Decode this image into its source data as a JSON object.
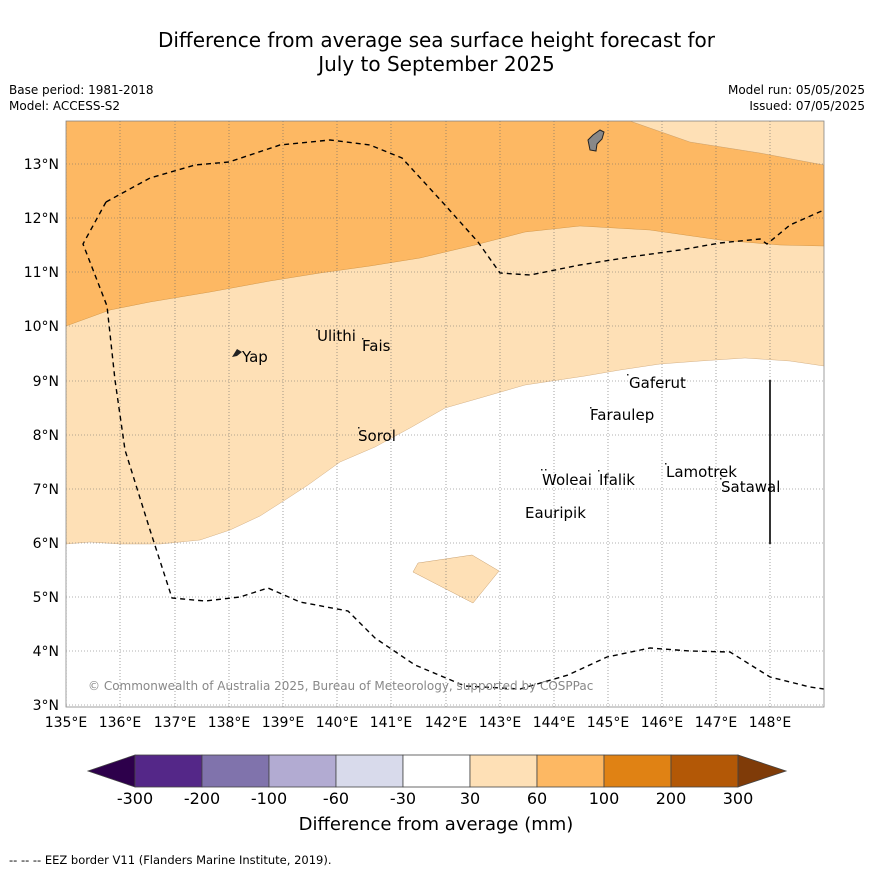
{
  "title_line1": "Difference from average sea surface height forecast for",
  "title_line2": "July to September 2025",
  "base_period": "Base period: 1981-2018",
  "model": "Model: ACCESS-S2",
  "model_run": "Model run: 05/05/2025",
  "issued": "Issued: 07/05/2025",
  "copyright": "© Commonwealth of Australia 2025, Bureau of Meteorology, supported by COSPPac",
  "footnote": "--  --  -- EEZ border V11 (Flanders Marine Institute, 2019).",
  "map": {
    "lon_range": [
      135,
      149
    ],
    "lat_range": [
      3,
      13.8
    ],
    "x_ticks": [
      "135°E",
      "136°E",
      "137°E",
      "138°E",
      "139°E",
      "140°E",
      "141°E",
      "142°E",
      "143°E",
      "144°E",
      "145°E",
      "146°E",
      "147°E",
      "148°E"
    ],
    "y_ticks": [
      "3°N",
      "4°N",
      "5°N",
      "6°N",
      "7°N",
      "8°N",
      "9°N",
      "10°N",
      "11°N",
      "12°N",
      "13°N"
    ],
    "places": [
      {
        "name": "Yap",
        "lon": 138.1,
        "lat": 9.5
      },
      {
        "name": "Ulithi",
        "lon": 139.7,
        "lat": 9.9
      },
      {
        "name": "Fais",
        "lon": 140.5,
        "lat": 9.75
      },
      {
        "name": "Sorol",
        "lon": 140.4,
        "lat": 8.1
      },
      {
        "name": "Gaferut",
        "lon": 145.4,
        "lat": 9.2
      },
      {
        "name": "Faraulep",
        "lon": 144.6,
        "lat": 8.55
      },
      {
        "name": "Woleai",
        "lon": 143.9,
        "lat": 7.3
      },
      {
        "name": "Ifalik",
        "lon": 144.45,
        "lat": 7.25
      },
      {
        "name": "Lamotrek",
        "lon": 146.3,
        "lat": 7.45
      },
      {
        "name": "Satawal",
        "lon": 147.0,
        "lat": 7.15
      },
      {
        "name": "Eauripik",
        "lon": 143.1,
        "lat": 6.7
      }
    ]
  },
  "colorbar": {
    "ticks": [
      "-300",
      "-200",
      "-100",
      "-60",
      "-30",
      "30",
      "60",
      "100",
      "200",
      "300"
    ],
    "colors": [
      "#2d004b",
      "#542788",
      "#8073ac",
      "#b2abd2",
      "#d8daeb",
      "#ffffff",
      "#fee0b6",
      "#fdb863",
      "#e08214",
      "#b35806",
      "#7f3b08"
    ],
    "label": "Difference from average (mm)"
  }
}
